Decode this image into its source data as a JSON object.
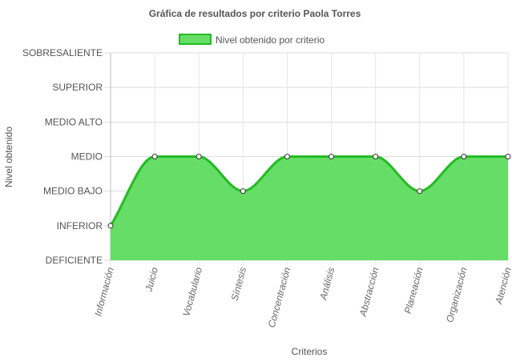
{
  "chart_data": {
    "type": "area",
    "title": "Gráfica de resultados por criterio Paola Torres",
    "xlabel": "Criterios",
    "ylabel": "Nivel obtenido",
    "levels": [
      "DEFICIENTE",
      "INFERIOR",
      "MEDIO BAJO",
      "MEDIO",
      "MEDIO ALTO",
      "SUPERIOR",
      "SOBRESALIENTE"
    ],
    "categories": [
      "Información",
      "Juicio",
      "Vocabulario",
      "Síntesis",
      "Concentración",
      "Análisis",
      "Abstracción",
      "Planeación",
      "Organización",
      "Atención"
    ],
    "series": [
      {
        "name": "Nivel obtenido por criterio",
        "values": [
          1,
          3,
          3,
          2,
          3,
          3,
          3,
          2,
          3,
          3
        ],
        "fill_color": "#66dd66",
        "line_color": "#22bb22"
      }
    ],
    "ylim": [
      0,
      6
    ],
    "legend_position": "top",
    "grid": true
  }
}
